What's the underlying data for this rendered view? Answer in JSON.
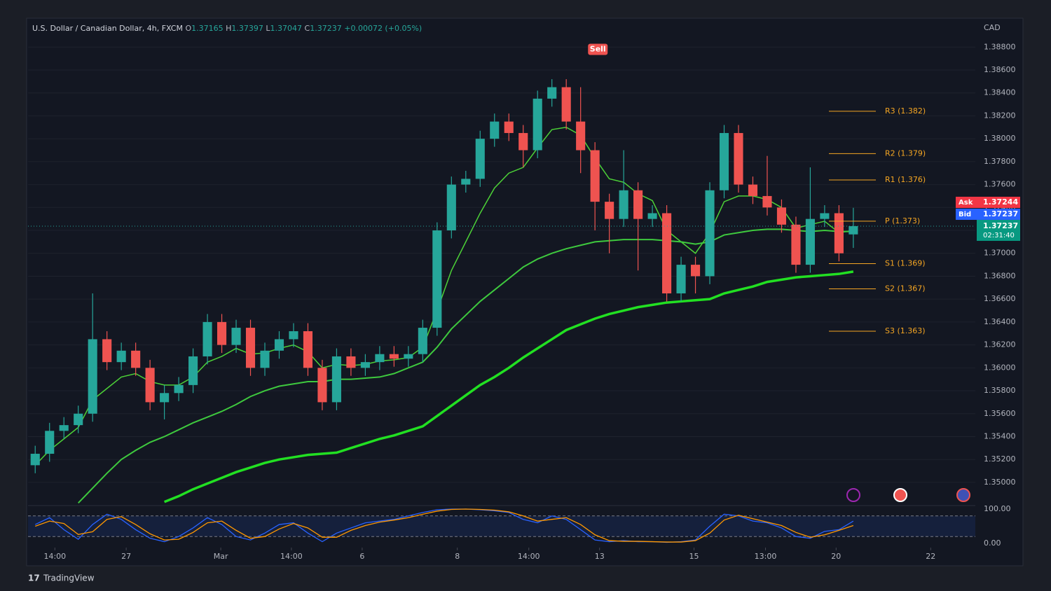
{
  "header": {
    "symbol": "U.S. Dollar / Canadian Dollar, 4h, FXCM",
    "o_label": "O",
    "h_label": "H",
    "l_label": "L",
    "c_label": "C",
    "change": "+0.00072 (+0.05%)"
  },
  "footer": {
    "brand": "TradingView"
  },
  "chart_data": {
    "type": "candlestick",
    "currency": "CAD",
    "up_color": "#26a69a",
    "down_color": "#ef5350",
    "open": [
      1.3515,
      1.3525,
      1.3545,
      1.355,
      1.356,
      1.3625,
      1.3605,
      1.3615,
      1.36,
      1.357,
      1.3578,
      1.3585,
      1.361,
      1.364,
      1.362,
      1.3635,
      1.36,
      1.3615,
      1.3625,
      1.3632,
      1.36,
      1.357,
      1.361,
      1.36,
      1.3605,
      1.3612,
      1.3608,
      1.3612,
      1.3635,
      1.372,
      1.376,
      1.3765,
      1.38,
      1.3815,
      1.3805,
      1.379,
      1.3835,
      1.3845,
      1.3815,
      1.379,
      1.3745,
      1.373,
      1.3755,
      1.373,
      1.3735,
      1.3665,
      1.369,
      1.368,
      1.3755,
      1.3805,
      1.376,
      1.375,
      1.374,
      1.3725,
      1.369,
      1.373,
      1.3735,
      1.37165
    ],
    "high": [
      1.3532,
      1.3552,
      1.3557,
      1.3567,
      1.3665,
      1.3632,
      1.3622,
      1.3622,
      1.3607,
      1.3585,
      1.3592,
      1.3617,
      1.3647,
      1.3647,
      1.3642,
      1.3642,
      1.3622,
      1.3632,
      1.3639,
      1.3639,
      1.3607,
      1.3617,
      1.3617,
      1.3612,
      1.3619,
      1.3619,
      1.3619,
      1.3642,
      1.3727,
      1.3767,
      1.3772,
      1.3807,
      1.3822,
      1.3822,
      1.3812,
      1.3842,
      1.3852,
      1.3852,
      1.3845,
      1.3797,
      1.3752,
      1.379,
      1.3762,
      1.3742,
      1.3742,
      1.3697,
      1.3697,
      1.3762,
      1.3812,
      1.3812,
      1.3767,
      1.3785,
      1.3747,
      1.3732,
      1.3775,
      1.3742,
      1.3742,
      1.37397
    ],
    "low": [
      1.3508,
      1.3518,
      1.3538,
      1.3543,
      1.3553,
      1.3598,
      1.3598,
      1.3593,
      1.3563,
      1.3555,
      1.3571,
      1.3578,
      1.3603,
      1.3613,
      1.3613,
      1.3593,
      1.3593,
      1.3608,
      1.3618,
      1.3593,
      1.3563,
      1.3563,
      1.3593,
      1.3593,
      1.3598,
      1.3601,
      1.3601,
      1.3605,
      1.3628,
      1.3713,
      1.3753,
      1.3758,
      1.3793,
      1.3798,
      1.3775,
      1.3783,
      1.3828,
      1.3808,
      1.377,
      1.372,
      1.37,
      1.3723,
      1.3685,
      1.3723,
      1.3658,
      1.3658,
      1.3665,
      1.3673,
      1.3748,
      1.3753,
      1.3743,
      1.3733,
      1.3718,
      1.3683,
      1.3683,
      1.3723,
      1.3693,
      1.37047
    ],
    "close": [
      1.3525,
      1.3545,
      1.355,
      1.356,
      1.3625,
      1.3605,
      1.3615,
      1.36,
      1.357,
      1.3578,
      1.3585,
      1.361,
      1.364,
      1.362,
      1.3635,
      1.36,
      1.3615,
      1.3625,
      1.3632,
      1.36,
      1.357,
      1.361,
      1.36,
      1.3605,
      1.3612,
      1.3608,
      1.3612,
      1.3635,
      1.372,
      1.376,
      1.3765,
      1.38,
      1.3815,
      1.3805,
      1.379,
      1.3835,
      1.3845,
      1.3815,
      1.379,
      1.3745,
      1.373,
      1.3755,
      1.373,
      1.3735,
      1.3665,
      1.369,
      1.368,
      1.3755,
      1.3805,
      1.376,
      1.375,
      1.374,
      1.3725,
      1.369,
      1.373,
      1.3735,
      1.37,
      1.37237
    ],
    "xlim": [
      -0.5,
      65.5
    ],
    "xticks": [
      {
        "value": 1.37,
        "label": "14:00"
      },
      {
        "value": 6.34,
        "label": "27"
      },
      {
        "value": 12.93,
        "label": "Mar"
      },
      {
        "value": 17.85,
        "label": "14:00"
      },
      {
        "value": 22.78,
        "label": "6"
      },
      {
        "value": 29.41,
        "label": "8"
      },
      {
        "value": 34.39,
        "label": "14:00"
      },
      {
        "value": 39.32,
        "label": "13"
      },
      {
        "value": 45.9,
        "label": "15"
      },
      {
        "value": 50.88,
        "label": "13:00"
      },
      {
        "value": 55.8,
        "label": "20"
      },
      {
        "value": 62.39,
        "label": "22"
      }
    ],
    "ylim": [
      1.3481,
      1.3904
    ],
    "yticks": [
      {
        "value": 1.35,
        "label": "1.35000"
      },
      {
        "value": 1.352,
        "label": "1.35200"
      },
      {
        "value": 1.354,
        "label": "1.35400"
      },
      {
        "value": 1.356,
        "label": "1.35600"
      },
      {
        "value": 1.358,
        "label": "1.35800"
      },
      {
        "value": 1.36,
        "label": "1.36000"
      },
      {
        "value": 1.362,
        "label": "1.36200"
      },
      {
        "value": 1.364,
        "label": "1.36400"
      },
      {
        "value": 1.366,
        "label": "1.36600"
      },
      {
        "value": 1.368,
        "label": "1.36800"
      },
      {
        "value": 1.37,
        "label": "1.37000"
      },
      {
        "value": 1.372,
        "label": "1.37200"
      },
      {
        "value": 1.374,
        "label": "1.37400"
      },
      {
        "value": 1.376,
        "label": "1.37600"
      },
      {
        "value": 1.378,
        "label": "1.37800"
      },
      {
        "value": 1.38,
        "label": "1.38000"
      },
      {
        "value": 1.382,
        "label": "1.38200"
      },
      {
        "value": 1.384,
        "label": "1.38400"
      },
      {
        "value": 1.386,
        "label": "1.38600"
      },
      {
        "value": 1.388,
        "label": "1.38800"
      }
    ],
    "lines": [
      {
        "color": "#4cd137",
        "values": [
          1.3515,
          1.3528,
          1.3538,
          1.3548,
          1.3572,
          1.3582,
          1.3592,
          1.3595,
          1.3588,
          1.3585,
          1.3585,
          1.3592,
          1.3605,
          1.361,
          1.3617,
          1.3612,
          1.3613,
          1.3617,
          1.362,
          1.3614,
          1.36,
          1.3603,
          1.3602,
          1.3603,
          1.3606,
          1.3607,
          1.3609,
          1.3618,
          1.365,
          1.3685,
          1.371,
          1.3735,
          1.3757,
          1.377,
          1.3775,
          1.3792,
          1.3808,
          1.381,
          1.3803,
          1.3783,
          1.3765,
          1.3762,
          1.3752,
          1.3746,
          1.372,
          1.371,
          1.37,
          1.3718,
          1.3745,
          1.375,
          1.375,
          1.3747,
          1.374,
          1.3722,
          1.3725,
          1.3728,
          1.3718,
          1.372
        ]
      },
      {
        "color": "#3ec93e",
        "values": [
          null,
          null,
          null,
          1.3482,
          1.3495,
          1.3508,
          1.352,
          1.3528,
          1.3535,
          1.354,
          1.3546,
          1.3552,
          1.3557,
          1.3562,
          1.3568,
          1.3575,
          1.358,
          1.3584,
          1.3586,
          1.3588,
          1.3588,
          1.359,
          1.359,
          1.3591,
          1.3592,
          1.3595,
          1.36,
          1.3605,
          1.3618,
          1.3634,
          1.3646,
          1.3658,
          1.3668,
          1.3678,
          1.3688,
          1.3695,
          1.37,
          1.3704,
          1.3707,
          1.371,
          1.3711,
          1.3712,
          1.3712,
          1.3712,
          1.3711,
          1.371,
          1.3708,
          1.371,
          1.3716,
          1.3718,
          1.372,
          1.3721,
          1.3721,
          1.372,
          1.3719,
          1.372,
          1.3719,
          1.3719
        ]
      },
      {
        "color": "#22e022",
        "values": [
          null,
          null,
          null,
          null,
          null,
          null,
          null,
          null,
          null,
          1.3483,
          1.3488,
          1.3494,
          1.3499,
          1.3504,
          1.3509,
          1.3513,
          1.3517,
          1.352,
          1.3522,
          1.3524,
          1.3525,
          1.3526,
          1.353,
          1.3534,
          1.3538,
          1.3541,
          1.3545,
          1.3549,
          1.3558,
          1.3567,
          1.3576,
          1.3585,
          1.3592,
          1.36,
          1.3609,
          1.3617,
          1.3625,
          1.3633,
          1.3638,
          1.3643,
          1.3647,
          1.365,
          1.3653,
          1.3655,
          1.3657,
          1.3658,
          1.3659,
          1.366,
          1.3665,
          1.3668,
          1.3671,
          1.3675,
          1.3677,
          1.3679,
          1.368,
          1.3681,
          1.3682,
          1.3684
        ]
      }
    ],
    "pivot_color": "#f5a623",
    "pivots": [
      {
        "label": "R3 (1.382)",
        "value": 1.3824
      },
      {
        "label": "R2 (1.379)",
        "value": 1.3787
      },
      {
        "label": "R1 (1.376)",
        "value": 1.3764
      },
      {
        "label": "P (1.373)",
        "value": 1.3728
      },
      {
        "label": "S1 (1.369)",
        "value": 1.3691
      },
      {
        "label": "S2 (1.367)",
        "value": 1.3669
      },
      {
        "label": "S3 (1.363)",
        "value": 1.3632
      }
    ],
    "annotations": [
      {
        "text": "Sell",
        "x": 39.2,
        "y": 1.3878
      }
    ],
    "ask": {
      "label": "Ask",
      "value": 1.37244
    },
    "bid": {
      "label": "Bid",
      "value": 1.37237
    },
    "countdown": "02:31:40",
    "oscillator": {
      "ylim": [
        0,
        100
      ],
      "yticks": [
        {
          "value": 0,
          "label": "0.00"
        },
        {
          "value": 100,
          "label": "100.00"
        }
      ],
      "bands": [
        20,
        80
      ],
      "lines": [
        {
          "color": "#2962ff",
          "values": [
            55,
            75,
            40,
            12,
            55,
            85,
            70,
            40,
            15,
            5,
            20,
            45,
            75,
            55,
            20,
            10,
            30,
            55,
            60,
            30,
            5,
            30,
            45,
            60,
            65,
            70,
            80,
            90,
            98,
            100,
            100,
            98,
            95,
            90,
            70,
            60,
            80,
            70,
            40,
            10,
            5,
            8,
            5,
            5,
            3,
            5,
            10,
            50,
            85,
            80,
            65,
            60,
            45,
            20,
            15,
            35,
            40,
            65
          ]
        },
        {
          "color": "#ff9800",
          "values": [
            50,
            65,
            58,
            26,
            34,
            70,
            78,
            55,
            28,
            10,
            12,
            32,
            60,
            65,
            38,
            15,
            20,
            42,
            58,
            45,
            18,
            18,
            38,
            52,
            62,
            68,
            75,
            85,
            94,
            99,
            100,
            99,
            97,
            92,
            80,
            65,
            70,
            75,
            55,
            25,
            8,
            6,
            6,
            5,
            4,
            4,
            8,
            30,
            68,
            82,
            72,
            62,
            52,
            32,
            18,
            25,
            38,
            52
          ]
        }
      ]
    }
  }
}
